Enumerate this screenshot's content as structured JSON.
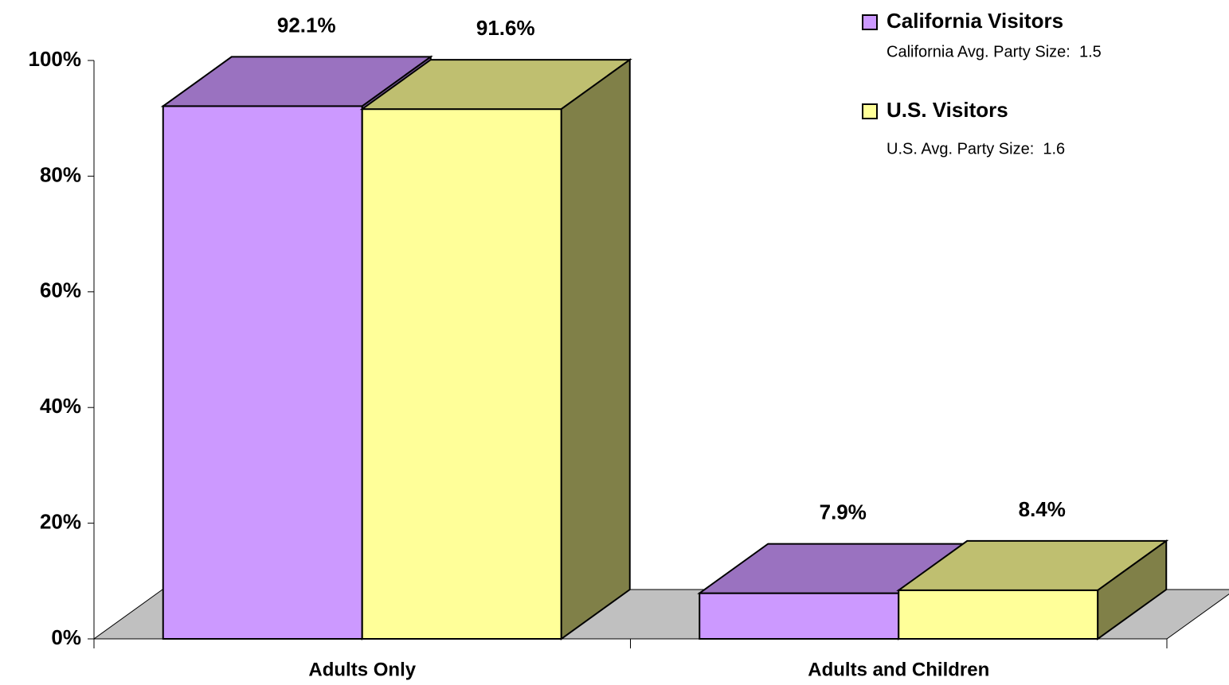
{
  "chart_data": {
    "type": "bar3d",
    "categories": [
      "Adults Only",
      "Adults and Children"
    ],
    "series": [
      {
        "name": "California Visitors",
        "color": "#cc99ff",
        "top_color": "#9a72c0",
        "side_color": "#7a5a9a",
        "note": "California Avg. Party Size:  1.5",
        "values": [
          92.1,
          7.9
        ],
        "value_labels": [
          "92.1%",
          "7.9%"
        ]
      },
      {
        "name": "U.S. Visitors",
        "color": "#ffff99",
        "top_color": "#bfbf70",
        "side_color": "#808048",
        "note": "U.S. Avg. Party Size:  1.6",
        "values": [
          91.6,
          8.4
        ],
        "value_labels": [
          "91.6%",
          "8.4%"
        ]
      }
    ],
    "ylim": [
      0,
      100
    ],
    "yticks": [
      {
        "value": 0,
        "label": "0%"
      },
      {
        "value": 20,
        "label": "20%"
      },
      {
        "value": 40,
        "label": "40%"
      },
      {
        "value": 60,
        "label": "60%"
      },
      {
        "value": 80,
        "label": "80%"
      },
      {
        "value": 100,
        "label": "100%"
      }
    ],
    "floor_color": "#c0c0c0"
  }
}
